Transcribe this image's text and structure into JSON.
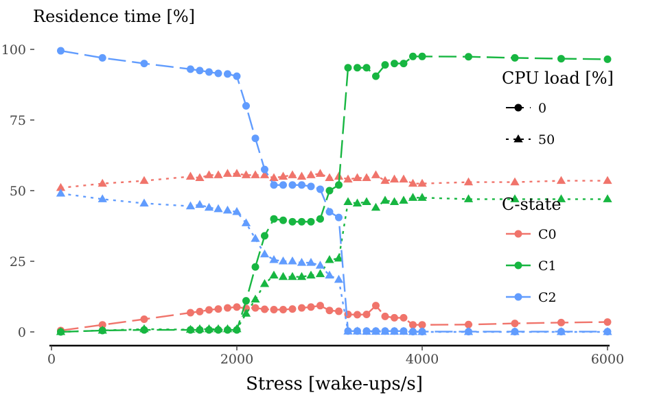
{
  "chart_data": {
    "type": "line",
    "title": "Residence time [%]",
    "xlabel": "Stress [wake-ups/s]",
    "ylabel": "",
    "xlim": [
      0,
      6000
    ],
    "ylim": [
      0,
      100
    ],
    "x_ticks": [
      0,
      2000,
      4000,
      6000
    ],
    "y_ticks": [
      0,
      25,
      50,
      75,
      100
    ],
    "x_tick_labels": [
      "0",
      "2000",
      "4000",
      "6000"
    ],
    "y_tick_labels": [
      "0",
      "25",
      "50",
      "75",
      "100"
    ],
    "grid": false,
    "colors": {
      "C0": "#f0746b",
      "C1": "#17b641",
      "C2": "#619cfe"
    },
    "legend": {
      "placement": "right",
      "load_title": "CPU load [%]",
      "load_items": [
        {
          "label": "0",
          "shape": "circle",
          "dash": "dashed"
        },
        {
          "label": "50",
          "shape": "triangle",
          "dash": "dotted"
        }
      ],
      "state_title": "C-state",
      "state_items": [
        {
          "label": "C0",
          "color": "#f0746b"
        },
        {
          "label": "C1",
          "color": "#17b641"
        },
        {
          "label": "C2",
          "color": "#619cfe"
        }
      ]
    },
    "series": [
      {
        "cstate": "C0",
        "load": "0",
        "color": "#f0746b",
        "marker": "circle",
        "dash": "dashed",
        "points": [
          [
            100,
            0.5
          ],
          [
            550,
            2.5
          ],
          [
            1000,
            4.5
          ],
          [
            1500,
            6.8
          ],
          [
            1600,
            7.2
          ],
          [
            1700,
            7.8
          ],
          [
            1800,
            8.1
          ],
          [
            1900,
            8.5
          ],
          [
            2000,
            8.8
          ],
          [
            2100,
            8.3
          ],
          [
            2200,
            8.5
          ],
          [
            2300,
            8.0
          ],
          [
            2400,
            7.9
          ],
          [
            2500,
            7.9
          ],
          [
            2600,
            8.1
          ],
          [
            2700,
            8.5
          ],
          [
            2800,
            8.8
          ],
          [
            2900,
            9.3
          ],
          [
            3000,
            7.6
          ],
          [
            3100,
            7.3
          ],
          [
            3200,
            6.2
          ],
          [
            3300,
            6.1
          ],
          [
            3400,
            6.2
          ],
          [
            3500,
            9.3
          ],
          [
            3600,
            5.5
          ],
          [
            3700,
            5.0
          ],
          [
            3800,
            5.0
          ],
          [
            3900,
            2.5
          ],
          [
            4000,
            2.5
          ],
          [
            4500,
            2.6
          ],
          [
            5000,
            3.0
          ],
          [
            5500,
            3.3
          ],
          [
            6000,
            3.5
          ]
        ]
      },
      {
        "cstate": "C0",
        "load": "50",
        "color": "#f0746b",
        "marker": "triangle",
        "dash": "dotted",
        "points": [
          [
            100,
            51.0
          ],
          [
            550,
            52.5
          ],
          [
            1000,
            53.5
          ],
          [
            1500,
            55.0
          ],
          [
            1600,
            54.5
          ],
          [
            1700,
            55.5
          ],
          [
            1800,
            55.5
          ],
          [
            1900,
            56.0
          ],
          [
            2000,
            56.0
          ],
          [
            2100,
            55.5
          ],
          [
            2200,
            55.5
          ],
          [
            2300,
            55.5
          ],
          [
            2400,
            54.5
          ],
          [
            2500,
            55.0
          ],
          [
            2600,
            55.5
          ],
          [
            2700,
            55.0
          ],
          [
            2800,
            55.5
          ],
          [
            2900,
            56.0
          ],
          [
            3000,
            54.5
          ],
          [
            3100,
            55.0
          ],
          [
            3200,
            54.0
          ],
          [
            3300,
            54.5
          ],
          [
            3400,
            54.5
          ],
          [
            3500,
            55.5
          ],
          [
            3600,
            53.5
          ],
          [
            3700,
            54.0
          ],
          [
            3800,
            54.0
          ],
          [
            3900,
            52.5
          ],
          [
            4000,
            52.5
          ],
          [
            4500,
            53.0
          ],
          [
            5000,
            53.0
          ],
          [
            5500,
            53.5
          ],
          [
            6000,
            53.5
          ]
        ]
      },
      {
        "cstate": "C1",
        "load": "0",
        "color": "#17b641",
        "marker": "circle",
        "dash": "dashed",
        "points": [
          [
            100,
            0.0
          ],
          [
            550,
            0.5
          ],
          [
            1000,
            0.7
          ],
          [
            1500,
            0.7
          ],
          [
            1600,
            0.7
          ],
          [
            1700,
            0.7
          ],
          [
            1800,
            0.7
          ],
          [
            1900,
            0.7
          ],
          [
            2000,
            0.7
          ],
          [
            2100,
            11.0
          ],
          [
            2200,
            23.0
          ],
          [
            2300,
            34.0
          ],
          [
            2400,
            40.0
          ],
          [
            2500,
            39.5
          ],
          [
            2600,
            39.0
          ],
          [
            2700,
            39.0
          ],
          [
            2800,
            39.0
          ],
          [
            2900,
            40.0
          ],
          [
            3000,
            50.0
          ],
          [
            3100,
            52.0
          ],
          [
            3200,
            93.5
          ],
          [
            3300,
            93.5
          ],
          [
            3400,
            93.5
          ],
          [
            3500,
            90.5
          ],
          [
            3600,
            94.5
          ],
          [
            3700,
            95.0
          ],
          [
            3800,
            95.0
          ],
          [
            3900,
            97.5
          ],
          [
            4000,
            97.5
          ],
          [
            4500,
            97.4
          ],
          [
            5000,
            97.0
          ],
          [
            5500,
            96.7
          ],
          [
            6000,
            96.5
          ]
        ]
      },
      {
        "cstate": "C1",
        "load": "50",
        "color": "#17b641",
        "marker": "triangle",
        "dash": "dotted",
        "points": [
          [
            100,
            0.0
          ],
          [
            550,
            0.5
          ],
          [
            1000,
            1.0
          ],
          [
            1500,
            0.8
          ],
          [
            1600,
            1.0
          ],
          [
            1700,
            1.0
          ],
          [
            1800,
            1.0
          ],
          [
            1900,
            1.0
          ],
          [
            2000,
            1.0
          ],
          [
            2100,
            6.5
          ],
          [
            2200,
            11.5
          ],
          [
            2300,
            17.0
          ],
          [
            2400,
            20.0
          ],
          [
            2500,
            19.5
          ],
          [
            2600,
            19.5
          ],
          [
            2700,
            19.5
          ],
          [
            2800,
            20.0
          ],
          [
            2900,
            20.5
          ],
          [
            3000,
            25.5
          ],
          [
            3100,
            26.0
          ],
          [
            3200,
            46.0
          ],
          [
            3300,
            45.5
          ],
          [
            3400,
            46.0
          ],
          [
            3500,
            44.0
          ],
          [
            3600,
            46.5
          ],
          [
            3700,
            46.0
          ],
          [
            3800,
            46.5
          ],
          [
            3900,
            47.5
          ],
          [
            4000,
            47.5
          ],
          [
            4500,
            47.0
          ],
          [
            5000,
            47.0
          ],
          [
            5500,
            47.0
          ],
          [
            6000,
            47.0
          ]
        ]
      },
      {
        "cstate": "C2",
        "load": "0",
        "color": "#619cfe",
        "marker": "circle",
        "dash": "dashed",
        "points": [
          [
            100,
            99.5
          ],
          [
            550,
            97.0
          ],
          [
            1000,
            95.0
          ],
          [
            1500,
            93.0
          ],
          [
            1600,
            92.5
          ],
          [
            1700,
            92.0
          ],
          [
            1800,
            91.5
          ],
          [
            1900,
            91.3
          ],
          [
            2000,
            90.5
          ],
          [
            2100,
            80.0
          ],
          [
            2200,
            68.5
          ],
          [
            2300,
            57.5
          ],
          [
            2400,
            52.0
          ],
          [
            2500,
            52.0
          ],
          [
            2600,
            52.0
          ],
          [
            2700,
            52.0
          ],
          [
            2800,
            51.5
          ],
          [
            2900,
            50.5
          ],
          [
            3000,
            42.5
          ],
          [
            3100,
            40.5
          ],
          [
            3200,
            0.3
          ],
          [
            3300,
            0.3
          ],
          [
            3400,
            0.3
          ],
          [
            3500,
            0.3
          ],
          [
            3600,
            0.3
          ],
          [
            3700,
            0.3
          ],
          [
            3800,
            0.3
          ],
          [
            3900,
            0.1
          ],
          [
            4000,
            0.1
          ],
          [
            4500,
            0.1
          ],
          [
            5000,
            0.1
          ],
          [
            5500,
            0.1
          ],
          [
            6000,
            0.1
          ]
        ]
      },
      {
        "cstate": "C2",
        "load": "50",
        "color": "#619cfe",
        "marker": "triangle",
        "dash": "dotted",
        "points": [
          [
            100,
            49.0
          ],
          [
            550,
            47.0
          ],
          [
            1000,
            45.5
          ],
          [
            1500,
            44.5
          ],
          [
            1600,
            45.0
          ],
          [
            1700,
            44.0
          ],
          [
            1800,
            43.5
          ],
          [
            1900,
            43.0
          ],
          [
            2000,
            42.5
          ],
          [
            2100,
            38.5
          ],
          [
            2200,
            33.0
          ],
          [
            2300,
            27.5
          ],
          [
            2400,
            25.5
          ],
          [
            2500,
            25.0
          ],
          [
            2600,
            25.0
          ],
          [
            2700,
            24.5
          ],
          [
            2800,
            24.5
          ],
          [
            2900,
            23.5
          ],
          [
            3000,
            20.0
          ],
          [
            3100,
            18.5
          ],
          [
            3200,
            0.2
          ],
          [
            3300,
            0.2
          ],
          [
            3400,
            0.1
          ],
          [
            3500,
            0.1
          ],
          [
            3600,
            0.1
          ],
          [
            3700,
            0.1
          ],
          [
            3800,
            0.1
          ],
          [
            3900,
            0.0
          ],
          [
            4000,
            0.0
          ],
          [
            4500,
            0.0
          ],
          [
            5000,
            0.0
          ],
          [
            5500,
            0.0
          ],
          [
            6000,
            0.0
          ]
        ]
      }
    ]
  }
}
